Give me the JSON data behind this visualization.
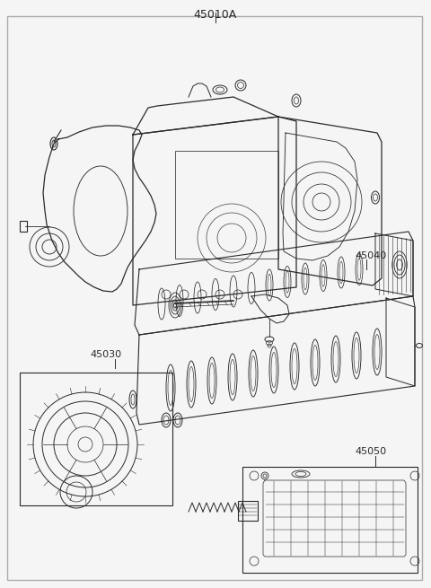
{
  "fig_width": 4.8,
  "fig_height": 6.55,
  "dpi": 100,
  "bg_color": "#f5f5f5",
  "line_color": "#2a2a2a",
  "border_color": "#aaaaaa",
  "label_color": "#222222",
  "labels": {
    "main": "45010A",
    "sub1": "45030",
    "sub2": "45040",
    "sub3": "45050"
  }
}
